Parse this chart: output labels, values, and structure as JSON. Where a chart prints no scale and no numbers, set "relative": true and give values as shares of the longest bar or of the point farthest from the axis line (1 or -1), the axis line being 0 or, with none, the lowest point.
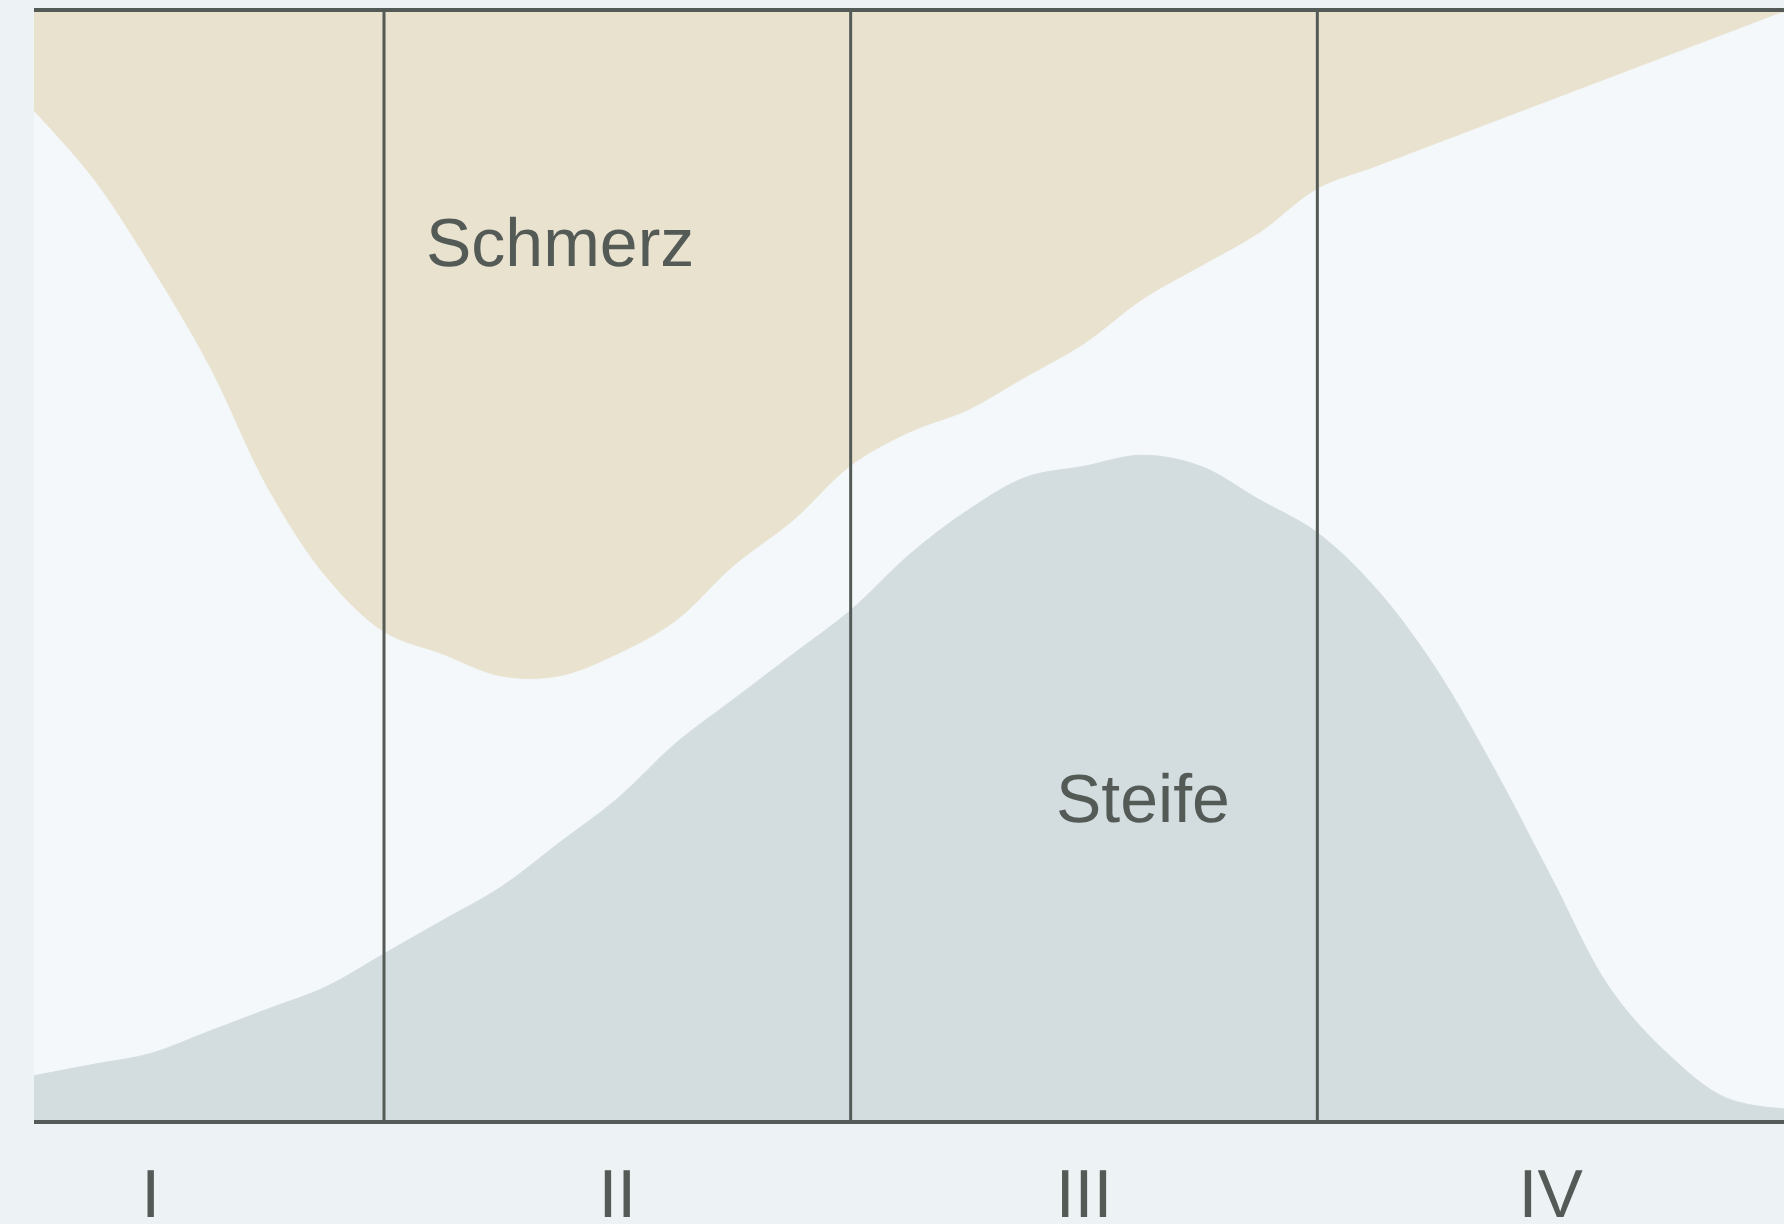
{
  "chart_data": {
    "type": "area",
    "relative": true,
    "stacked": true,
    "categories": [
      null,
      null,
      "I",
      null,
      null,
      null,
      null,
      null,
      null,
      null,
      "II",
      null,
      null,
      null,
      null,
      null,
      null,
      null,
      "III",
      null,
      null,
      null,
      null,
      null,
      null,
      null,
      "IV",
      null,
      null,
      null,
      null
    ],
    "series": [
      {
        "name": "Steife",
        "color": "#d3dde0",
        "values": [
          0.04,
          0.05,
          0.06,
          0.08,
          0.1,
          0.12,
          0.15,
          0.18,
          0.21,
          0.25,
          0.29,
          0.34,
          0.38,
          0.42,
          0.46,
          0.51,
          0.55,
          0.58,
          0.59,
          0.6,
          0.59,
          0.56,
          0.53,
          0.48,
          0.41,
          0.32,
          0.22,
          0.12,
          0.06,
          0.02,
          0.01
        ]
      },
      {
        "color": "#f4f8fa",
        "values": [
          0.87,
          0.8,
          0.71,
          0.6,
          0.47,
          0.37,
          0.29,
          0.24,
          0.19,
          0.15,
          0.13,
          0.11,
          0.12,
          0.12,
          0.13,
          0.11,
          0.09,
          0.09,
          0.11,
          0.14,
          0.18,
          0.24,
          0.31,
          0.38,
          0.47,
          0.58,
          0.7,
          0.82,
          0.9,
          0.96,
          0.99
        ]
      },
      {
        "name": "Schmerz",
        "color": "#e9e2cf",
        "values": [
          0.09,
          0.15,
          0.23,
          0.32,
          0.43,
          0.51,
          0.56,
          0.58,
          0.6,
          0.6,
          0.58,
          0.55,
          0.5,
          0.46,
          0.41,
          0.38,
          0.36,
          0.33,
          0.3,
          0.26,
          0.23,
          0.2,
          0.16,
          0.14,
          0.12,
          0.1,
          0.08,
          0.06,
          0.04,
          0.02,
          0.0
        ]
      }
    ],
    "grid": "x",
    "legend": false
  }
}
